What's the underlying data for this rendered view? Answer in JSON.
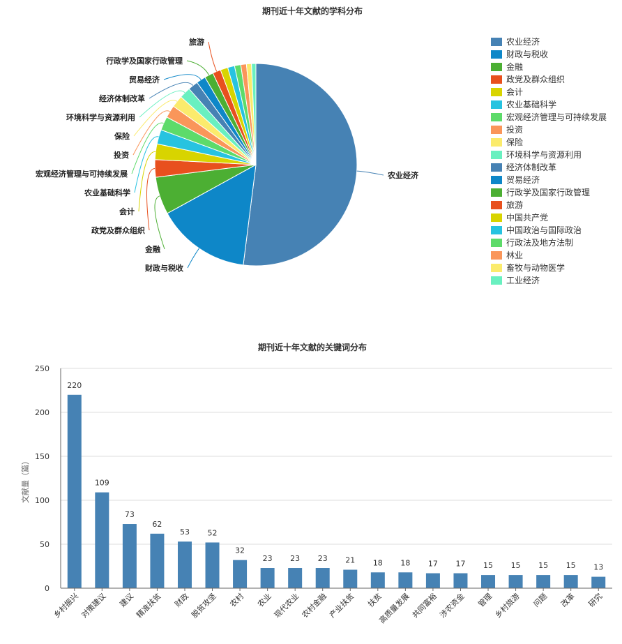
{
  "colors": {
    "palette": [
      "#4682b4",
      "#0e87c8",
      "#4caf33",
      "#e8501e",
      "#d8d400",
      "#27c3e0",
      "#5ddb6a",
      "#fa965a",
      "#fbeb6c",
      "#69f0c0"
    ],
    "bar": "#4682b4",
    "axis": "#666666",
    "grid": "#dddddd"
  },
  "chart_data": [
    {
      "type": "pie",
      "title": "期刊近十年文献的学科分布",
      "legend_position": "right",
      "slices": [
        {
          "name": "农业经济",
          "value": 52.0,
          "label": "农业经济"
        },
        {
          "name": "财政与税收",
          "value": 15.0,
          "label": "财政与税收"
        },
        {
          "name": "金融",
          "value": 6.0,
          "label": "金融"
        },
        {
          "name": "政党及群众组织",
          "value": 2.8,
          "label": "政党及群众组织"
        },
        {
          "name": "会计",
          "value": 2.5,
          "label": "会计"
        },
        {
          "name": "农业基础科学",
          "value": 2.3,
          "label": "农业基础科学"
        },
        {
          "name": "宏观经济管理与可持续发展",
          "value": 2.2,
          "label": "宏观经济管理与可持续发展"
        },
        {
          "name": "投资",
          "value": 2.0,
          "label": "投资"
        },
        {
          "name": "保险",
          "value": 1.9,
          "label": "保险"
        },
        {
          "name": "环境科学与资源利用",
          "value": 1.8,
          "label": "环境科学与资源利用"
        },
        {
          "name": "经济体制改革",
          "value": 1.6,
          "label": "经济体制改革"
        },
        {
          "name": "贸易经济",
          "value": 1.5,
          "label": "贸易经济"
        },
        {
          "name": "行政学及国家行政管理",
          "value": 1.4,
          "label": "行政学及国家行政管理"
        },
        {
          "name": "旅游",
          "value": 1.3,
          "label": "旅游"
        },
        {
          "name": "中国共产党",
          "value": 1.2,
          "label": ""
        },
        {
          "name": "中国政治与国际政治",
          "value": 1.1,
          "label": ""
        },
        {
          "name": "行政法及地方法制",
          "value": 1.0,
          "label": ""
        },
        {
          "name": "林业",
          "value": 0.9,
          "label": ""
        },
        {
          "name": "畜牧与动物医学",
          "value": 0.8,
          "label": ""
        },
        {
          "name": "工业经济",
          "value": 0.7,
          "label": ""
        }
      ]
    },
    {
      "type": "bar",
      "title": "期刊近十年文献的关键词分布",
      "ylabel": "文献量（篇）",
      "ylim": [
        0,
        250
      ],
      "yticks": [
        0,
        50,
        100,
        150,
        200,
        250
      ],
      "categories": [
        "乡村振兴",
        "对策建议",
        "建议",
        "精准扶贫",
        "财政",
        "脱贫攻坚",
        "农村",
        "农业",
        "现代农业",
        "农村金融",
        "产业扶贫",
        "扶贫",
        "高质量发展",
        "共同富裕",
        "涉农资金",
        "管理",
        "乡村旅游",
        "问题",
        "改革",
        "研究"
      ],
      "values": [
        220,
        109,
        73,
        62,
        53,
        52,
        32,
        23,
        23,
        23,
        21,
        18,
        18,
        17,
        17,
        15,
        15,
        15,
        15,
        13
      ],
      "grid": true
    }
  ]
}
